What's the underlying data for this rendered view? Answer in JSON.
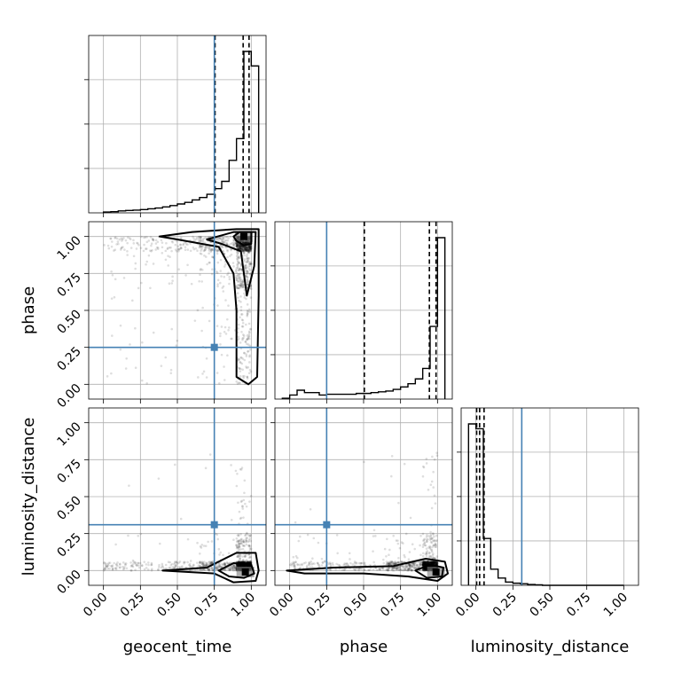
{
  "chart_data": {
    "type": "corner",
    "parameters": [
      "geocent_time",
      "phase",
      "luminosity_distance"
    ],
    "tick_labels": [
      "0.00",
      "0.25",
      "0.50",
      "0.75",
      "1.00"
    ],
    "axis_range": [
      -0.1,
      1.1
    ],
    "truths": {
      "geocent_time": 0.75,
      "phase": 0.25,
      "luminosity_distance": 0.31
    },
    "truth_color": "#4682b4",
    "grid": true,
    "quantiles": {
      "geocent_time": [
        0.755,
        0.945,
        0.985
      ],
      "phase": [
        0.505,
        0.945,
        0.99
      ],
      "luminosity_distance": [
        0.005,
        0.025,
        0.055
      ]
    },
    "histograms": {
      "geocent_time": {
        "edges": [
          0.0,
          0.05,
          0.1,
          0.15,
          0.2,
          0.25,
          0.3,
          0.35,
          0.4,
          0.45,
          0.5,
          0.55,
          0.6,
          0.65,
          0.7,
          0.75,
          0.8,
          0.85,
          0.9,
          0.95,
          1.0,
          1.05
        ],
        "counts": [
          0.5,
          0.7,
          1.2,
          1.5,
          1.7,
          2,
          2.5,
          3,
          3.7,
          4.5,
          5.5,
          6.5,
          8,
          9.5,
          11.5,
          15,
          19.5,
          32.5,
          46,
          100,
          91
        ]
      },
      "phase": {
        "edges": [
          -0.05,
          0.0,
          0.05,
          0.1,
          0.15,
          0.2,
          0.25,
          0.3,
          0.35,
          0.4,
          0.45,
          0.5,
          0.55,
          0.6,
          0.65,
          0.7,
          0.75,
          0.8,
          0.85,
          0.9,
          0.95,
          1.0,
          1.05
        ],
        "counts": [
          0.5,
          2.5,
          5.5,
          4,
          4,
          2.5,
          3,
          3,
          3,
          3,
          3.5,
          3.5,
          4,
          4.5,
          5,
          6,
          7.5,
          9.5,
          12.5,
          19,
          45,
          100
        ]
      },
      "luminosity_distance": {
        "edges": [
          -0.05,
          0.0,
          0.05,
          0.1,
          0.15,
          0.2,
          0.25,
          0.3,
          0.35,
          0.4,
          0.45,
          0.5,
          0.55,
          0.6,
          0.65,
          0.7,
          0.75,
          0.8,
          0.85,
          0.9,
          0.95,
          1.0
        ],
        "counts": [
          100,
          97,
          29,
          10,
          4.5,
          2,
          1.3,
          1,
          0.5,
          0.3,
          0,
          0,
          0,
          0,
          0,
          0,
          0,
          0,
          0,
          0,
          0
        ]
      }
    },
    "panels_2d": [
      {
        "x": "geocent_time",
        "y": "phase"
      },
      {
        "x": "geocent_time",
        "y": "luminosity_distance"
      },
      {
        "x": "phase",
        "y": "luminosity_distance"
      }
    ]
  }
}
